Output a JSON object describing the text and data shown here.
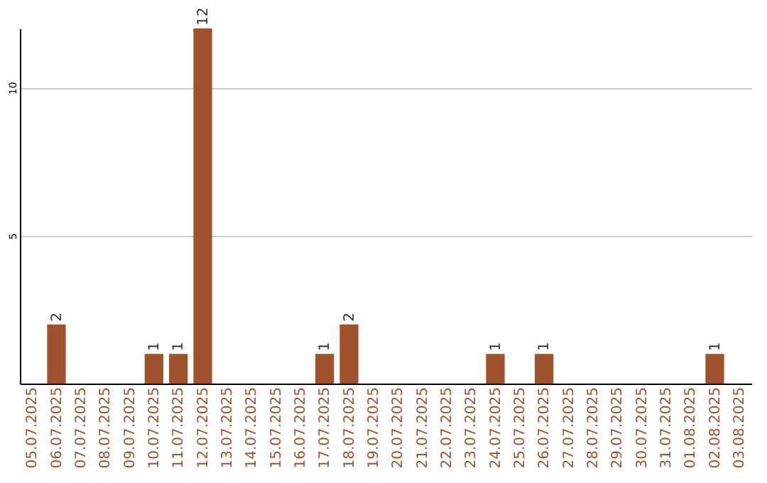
{
  "chart_data": {
    "type": "bar",
    "categories": [
      "05.07.2025",
      "06.07.2025",
      "07.07.2025",
      "08.07.2025",
      "09.07.2025",
      "10.07.2025",
      "11.07.2025",
      "12.07.2025",
      "13.07.2025",
      "14.07.2025",
      "15.07.2025",
      "16.07.2025",
      "17.07.2025",
      "18.07.2025",
      "19.07.2025",
      "20.07.2025",
      "21.07.2025",
      "22.07.2025",
      "23.07.2025",
      "24.07.2025",
      "25.07.2025",
      "26.07.2025",
      "27.07.2025",
      "28.07.2025",
      "29.07.2025",
      "30.07.2025",
      "31.07.2025",
      "01.08.2025",
      "02.08.2025",
      "03.08.2025"
    ],
    "values": [
      0,
      2,
      0,
      0,
      0,
      1,
      1,
      12,
      0,
      0,
      0,
      0,
      1,
      2,
      0,
      0,
      0,
      0,
      0,
      1,
      0,
      1,
      0,
      0,
      0,
      0,
      0,
      0,
      1,
      0
    ],
    "value_labels": [
      null,
      "2",
      null,
      null,
      null,
      "1",
      "1",
      "12",
      null,
      null,
      null,
      null,
      "1",
      "2",
      null,
      null,
      null,
      null,
      null,
      "1",
      null,
      "1",
      null,
      null,
      null,
      null,
      null,
      null,
      "1",
      null
    ],
    "color": "#a0522d",
    "ylim": [
      0,
      12
    ],
    "yticks": [
      5,
      10
    ],
    "grid": "y"
  }
}
